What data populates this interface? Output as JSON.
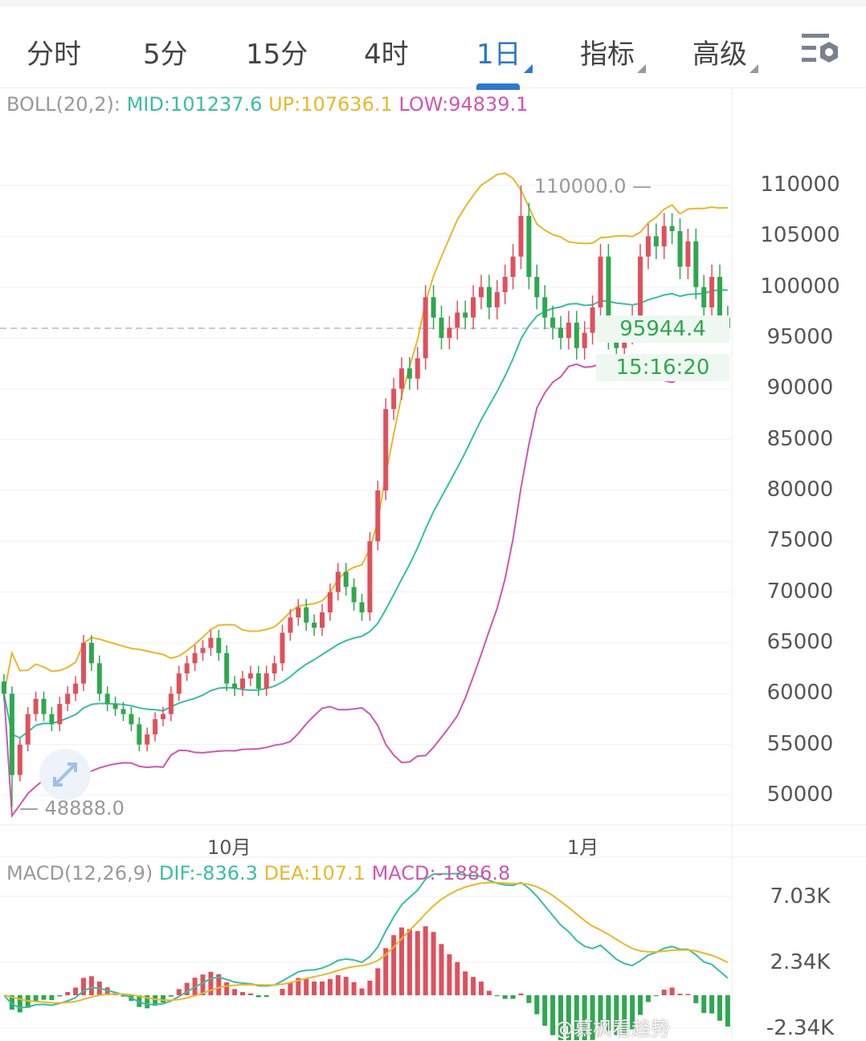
{
  "tabs": [
    {
      "label": "分时",
      "active": false,
      "dropdown": false
    },
    {
      "label": "5分",
      "active": false,
      "dropdown": false
    },
    {
      "label": "15分",
      "active": false,
      "dropdown": false
    },
    {
      "label": "4时",
      "active": false,
      "dropdown": false
    },
    {
      "label": "1日",
      "active": true,
      "dropdown": true
    },
    {
      "label": "指标",
      "active": false,
      "dropdown": true
    },
    {
      "label": "高级",
      "active": false,
      "dropdown": true
    }
  ],
  "settings_icon": "chart-settings-icon",
  "boll": {
    "label": "BOLL(20,2):",
    "mid": "MID:101237.6",
    "up": "UP:107636.1",
    "low": "LOW:94839.1"
  },
  "macd": {
    "label": "MACD(12,26,9)",
    "dif": "DIF:-836.3",
    "dea": "DEA:107.1",
    "macd": "MACD:-1886.8"
  },
  "colors": {
    "up": "#e0505c",
    "down": "#2ea84f",
    "mid": "#35bfa4",
    "upper": "#e9b829",
    "lower": "#d056b0",
    "active_tab": "#2a78d0"
  },
  "price_axis": [
    "110000",
    "105000",
    "100000",
    "95000",
    "90000",
    "85000",
    "80000",
    "75000",
    "70000",
    "65000",
    "60000",
    "55000",
    "50000"
  ],
  "macd_axis": [
    "7.03K",
    "2.34K",
    "-2.34K"
  ],
  "date_axis": [
    "10月",
    "1月"
  ],
  "current_price": "95944.4",
  "countdown": "15:16:20",
  "high_label": "110000.0",
  "low_label": "48888.0",
  "watermark": "@慕枫看趋势",
  "chart_data": {
    "type": "candlestick",
    "price_range": [
      48888,
      110000
    ],
    "grid": true,
    "indicators": [
      "BOLL(20,2)",
      "MACD(12,26,9)"
    ],
    "closes": [
      60000,
      52000,
      55000,
      58000,
      59500,
      58000,
      57000,
      59000,
      60000,
      61000,
      65000,
      63000,
      60000,
      59000,
      58500,
      58000,
      57000,
      55000,
      56000,
      57500,
      58000,
      60000,
      62000,
      63000,
      64000,
      64500,
      65500,
      64000,
      61000,
      60500,
      61500,
      62000,
      60500,
      62000,
      63000,
      66000,
      67500,
      68500,
      67000,
      66500,
      68000,
      70000,
      72000,
      70500,
      69000,
      68000,
      75000,
      80000,
      88000,
      90000,
      92000,
      91000,
      93000,
      99000,
      97000,
      95000,
      96000,
      97500,
      97000,
      99000,
      100000,
      98000,
      99500,
      101000,
      103000,
      107000,
      101000,
      99000,
      97000,
      96000,
      95000,
      96500,
      94000,
      95500,
      98000,
      103000,
      95000,
      94000,
      95500,
      97000,
      103000,
      105000,
      104000,
      106000,
      105500,
      102000,
      104500,
      100000,
      98000,
      101000,
      97000,
      95944.4
    ],
    "high": 110000,
    "low": 48888
  }
}
